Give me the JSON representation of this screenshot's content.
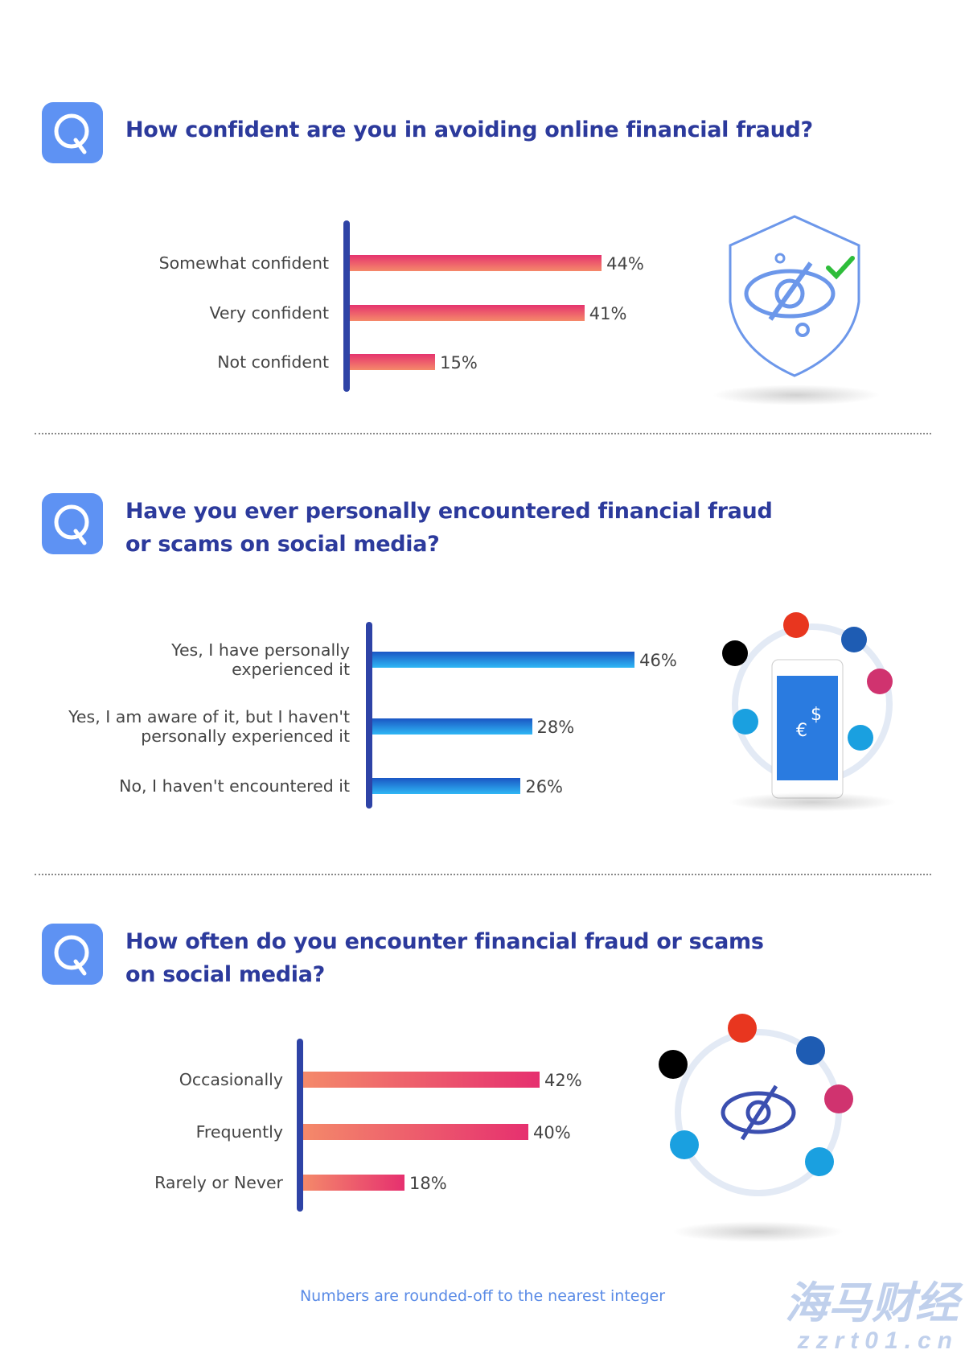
{
  "colors": {
    "title": "#2c3a9c",
    "q_box": "#5e92f3",
    "axis": "#2e43a6",
    "chart1_bar": [
      "#e5336e",
      "#f5896a"
    ],
    "chart2_bar": [
      "#1a56c4",
      "#2fb7f5"
    ],
    "chart3_bar": [
      "#f4896a",
      "#e6306f"
    ],
    "footnote": "#5a8be6"
  },
  "chart_data": [
    {
      "type": "bar",
      "orientation": "horizontal",
      "title": "How confident are you in avoiding online financial fraud?",
      "categories": [
        "Somewhat confident",
        "Very confident",
        "Not confident"
      ],
      "values": [
        44,
        41,
        15
      ],
      "labels": [
        "44%",
        "41%",
        "15%"
      ],
      "unit": "%",
      "icon": "shield-eye-check-icon"
    },
    {
      "type": "bar",
      "orientation": "horizontal",
      "title_lines": [
        "Have you ever personally encountered financial fraud",
        "or scams on social media?"
      ],
      "categories": [
        [
          "Yes, I have personally",
          "experienced it"
        ],
        [
          "Yes, I am aware of it, but I haven't",
          "personally experienced it"
        ],
        [
          "No, I haven't encountered it"
        ]
      ],
      "values": [
        46,
        28,
        26
      ],
      "labels": [
        "46%",
        "28%",
        "26%"
      ],
      "unit": "%",
      "icon": "phone-social-media-currency-icon"
    },
    {
      "type": "bar",
      "orientation": "horizontal",
      "title_lines": [
        "How often do you encounter financial fraud or scams",
        "on social media?"
      ],
      "categories": [
        "Occasionally",
        "Frequently",
        "Rarely or Never"
      ],
      "values": [
        42,
        40,
        18
      ],
      "labels": [
        "42%",
        "40%",
        "18%"
      ],
      "unit": "%",
      "icon": "social-media-eye-icon"
    }
  ],
  "footnote": "Numbers are rounded-off to the nearest integer",
  "watermark": {
    "line1": "海马财经",
    "line2": "zzrt01.cn"
  }
}
